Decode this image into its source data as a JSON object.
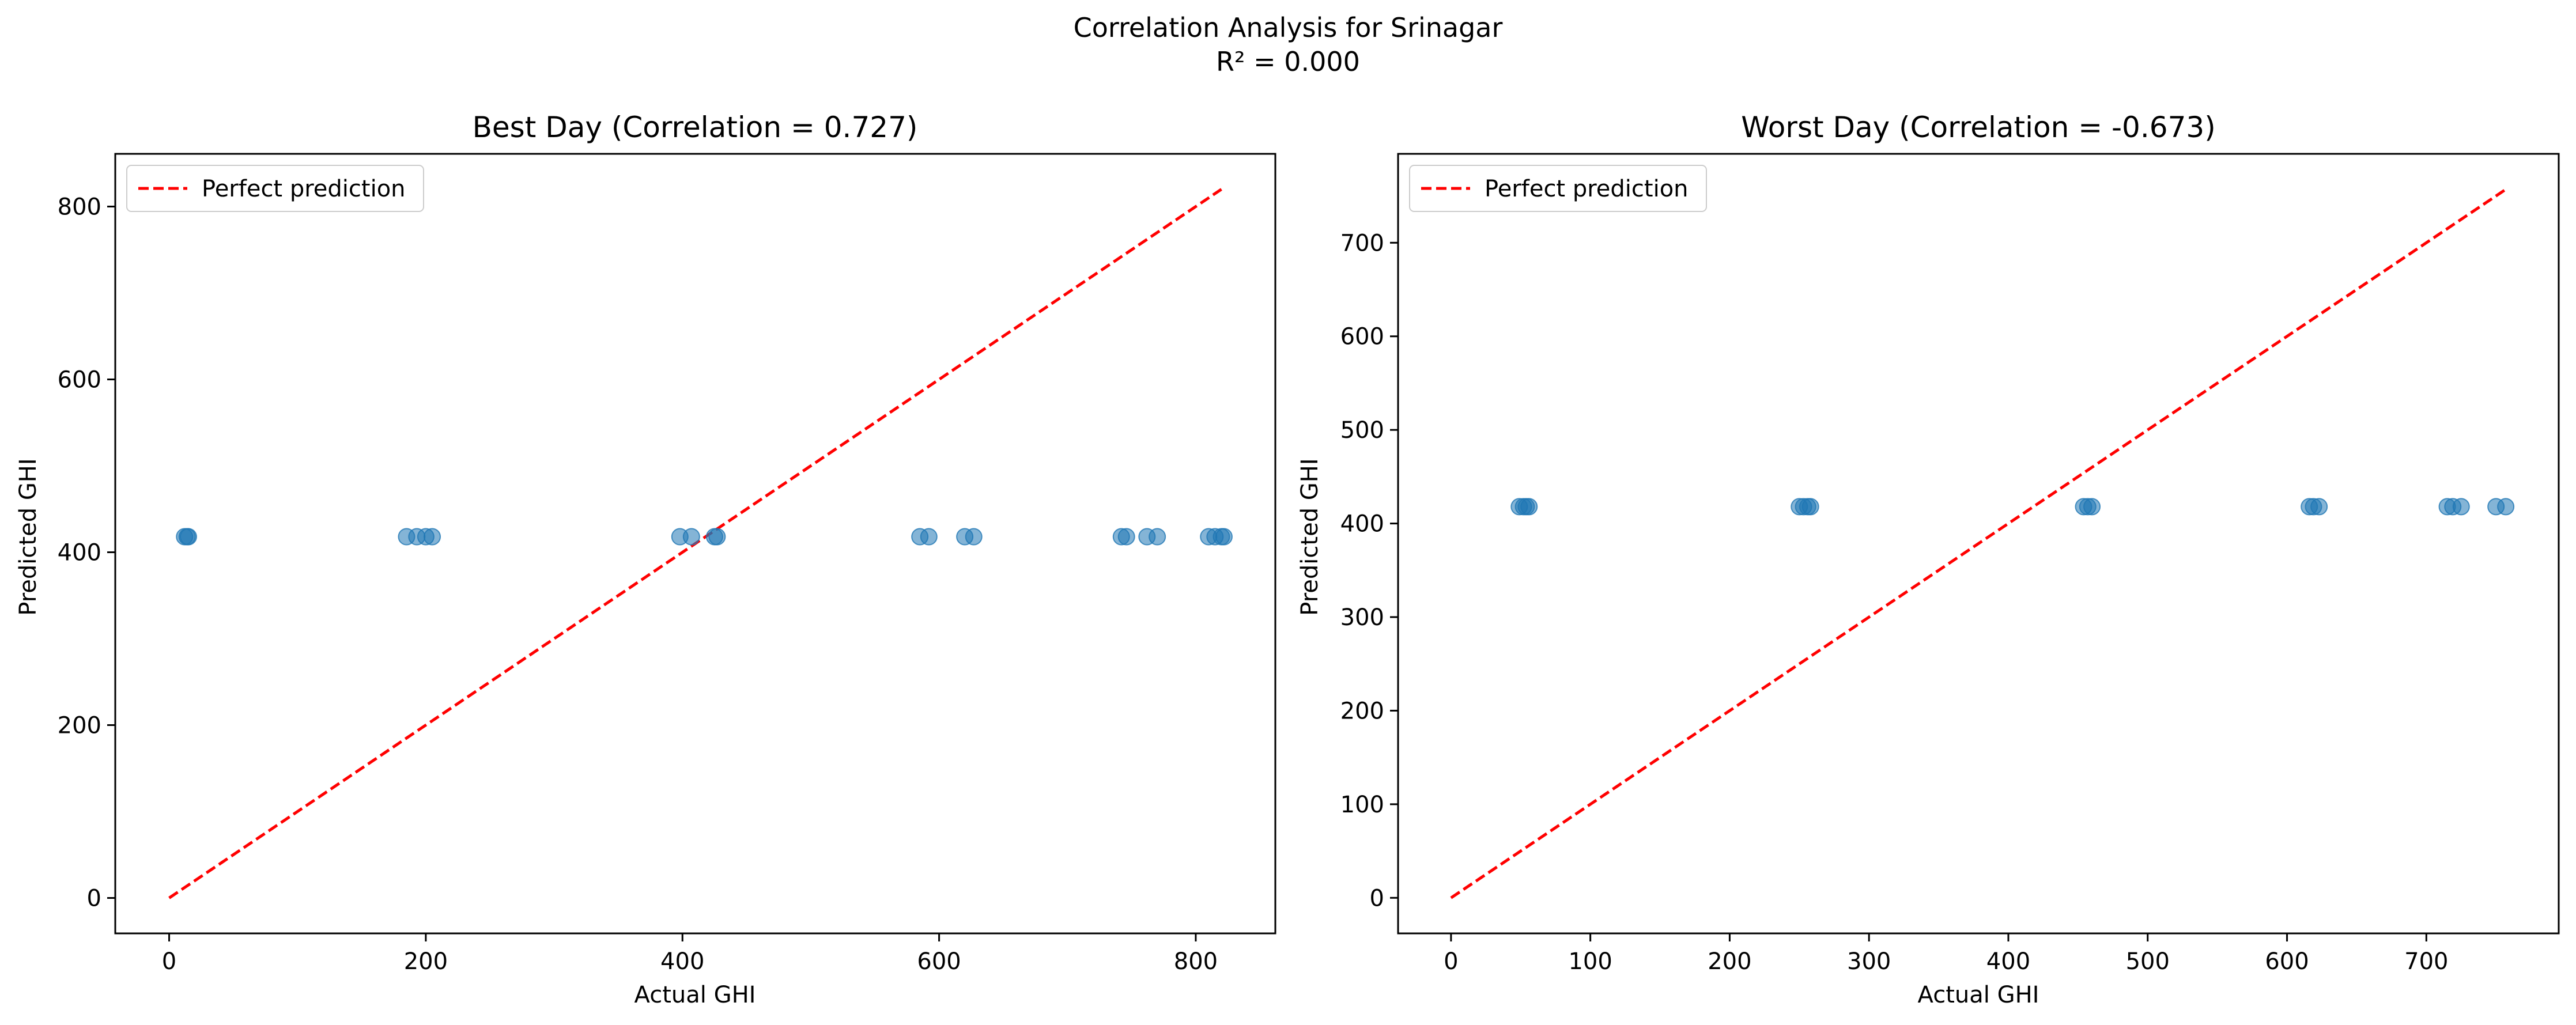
{
  "figure": {
    "suptitle_line1": "Correlation Analysis for Srinagar",
    "suptitle_line2": "R² = 0.000"
  },
  "chart_data": [
    {
      "type": "scatter",
      "title": "Best Day (Correlation = 0.727)",
      "xlabel": "Actual GHI",
      "ylabel": "Predicted GHI",
      "xlim": [
        -42,
        862
      ],
      "ylim": [
        -41,
        861
      ],
      "xticks": [
        0,
        200,
        400,
        600,
        800
      ],
      "yticks": [
        0,
        200,
        400,
        600,
        800
      ],
      "grid": false,
      "legend": {
        "location": "top-left",
        "entries": [
          "Perfect prediction"
        ]
      },
      "reference_line": {
        "name": "Perfect prediction",
        "x": [
          0,
          820
        ],
        "y": [
          0,
          820
        ],
        "color": "#ff0000",
        "style": "dashed"
      },
      "series": [
        {
          "marker_color": "#1f77b4",
          "x": [
            12,
            14,
            15,
            185,
            193,
            200,
            205,
            398,
            407,
            425,
            427,
            585,
            592,
            620,
            627,
            742,
            746,
            762,
            770,
            810,
            815,
            820,
            822
          ],
          "y": [
            418,
            418,
            418,
            418,
            418,
            418,
            418,
            418,
            418,
            418,
            418,
            418,
            418,
            418,
            418,
            418,
            418,
            418,
            418,
            418,
            418,
            418,
            418
          ]
        }
      ]
    },
    {
      "type": "scatter",
      "title": "Worst Day (Correlation = -0.673)",
      "xlabel": "Actual GHI",
      "ylabel": "Predicted GHI",
      "xlim": [
        -38,
        795
      ],
      "ylim": [
        -38,
        795
      ],
      "xticks": [
        0,
        100,
        200,
        300,
        400,
        500,
        600,
        700
      ],
      "yticks": [
        0,
        100,
        200,
        300,
        400,
        500,
        600,
        700
      ],
      "grid": false,
      "legend": {
        "location": "top-left",
        "entries": [
          "Perfect prediction"
        ]
      },
      "reference_line": {
        "name": "Perfect prediction",
        "x": [
          0,
          758
        ],
        "y": [
          0,
          758
        ],
        "color": "#ff0000",
        "style": "dashed"
      },
      "series": [
        {
          "marker_color": "#1f77b4",
          "x": [
            49,
            52,
            54,
            56,
            250,
            253,
            256,
            258,
            454,
            457,
            460,
            616,
            619,
            623,
            715,
            719,
            725,
            750,
            757
          ],
          "y": [
            418,
            418,
            418,
            418,
            418,
            418,
            418,
            418,
            418,
            418,
            418,
            418,
            418,
            418,
            418,
            418,
            418,
            418,
            418
          ]
        }
      ]
    }
  ]
}
